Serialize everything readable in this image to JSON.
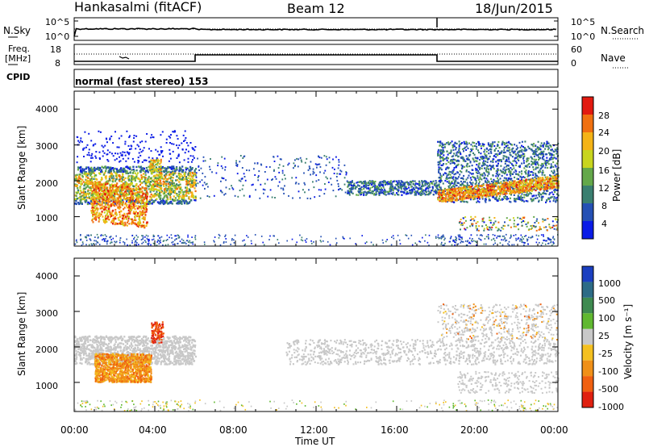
{
  "header": {
    "station": "Hankasalmi (fitACF)",
    "beam": "Beam 12",
    "date": "18/Jun/2015"
  },
  "noise_panel": {
    "left_label": "N.Sky",
    "right_label": "N.Search",
    "ticks": [
      "10^5",
      "10^0"
    ]
  },
  "freq_panel": {
    "left_label_line1": "Freq.",
    "left_label_line2": "[MHz]",
    "left_ticks": [
      "18",
      "8"
    ],
    "right_label": "Nave",
    "right_ticks": [
      "60",
      "0"
    ]
  },
  "cpid": {
    "label": "CPID",
    "program": "normal (fast stereo) 153"
  },
  "power_panel": {
    "ylabel": "Slant Range [km]",
    "yticks": [
      "4000",
      "3000",
      "2000",
      "1000"
    ],
    "colorbar_label": "Power [dB]",
    "colorbar_ticks": [
      "28",
      "24",
      "20",
      "16",
      "12",
      "8",
      "4"
    ],
    "colors": [
      "#0a1be6",
      "#2550b4",
      "#3a7f70",
      "#64a84a",
      "#c8d51e",
      "#f4b316",
      "#f07010",
      "#e21a10"
    ]
  },
  "velocity_panel": {
    "ylabel": "Slant Range [km]",
    "yticks": [
      "4000",
      "3000",
      "2000",
      "1000"
    ],
    "colorbar_label": "Velocity [m s⁻¹]",
    "colorbar_ticks": [
      "1000",
      "500",
      "100",
      "25",
      "-25",
      "-100",
      "-500",
      "-1000"
    ],
    "colors": [
      "#1b3fc0",
      "#2d6b86",
      "#3e8a50",
      "#60b830",
      "#c8c8c8",
      "#f4c020",
      "#f09018",
      "#f06010",
      "#e02010"
    ]
  },
  "xaxis": {
    "label": "Time UT",
    "ticks": [
      "00:00",
      "04:00",
      "08:00",
      "12:00",
      "16:00",
      "20:00",
      "00:00"
    ]
  },
  "chart_data": [
    {
      "type": "heatmap",
      "title": "Beam 12",
      "xlabel": "Time UT",
      "ylabel": "Slant Range [km]",
      "xlim": [
        "00:00",
        "24:00"
      ],
      "ylim": [
        180,
        4500
      ],
      "zlabel": "Power [dB]",
      "zticks": [
        4,
        8,
        12,
        16,
        20,
        24,
        28
      ],
      "regions": [
        {
          "t_start": 0.0,
          "t_end": 6.0,
          "range_min": 1200,
          "range_max": 2500,
          "power_db": 18
        },
        {
          "t_start": 0.8,
          "t_end": 3.5,
          "range_min": 900,
          "range_max": 2000,
          "power_db": 26
        },
        {
          "t_start": 3.7,
          "t_end": 4.3,
          "range_min": 2250,
          "range_max": 2600,
          "power_db": 20
        },
        {
          "t_start": 13.5,
          "t_end": 18.0,
          "range_min": 1600,
          "range_max": 2000,
          "power_db": 12
        },
        {
          "t_start": 18.0,
          "t_end": 24.0,
          "range_min": 1400,
          "range_max": 3100,
          "power_db": 10
        },
        {
          "t_start": 18.0,
          "t_end": 24.0,
          "range_min": 1300,
          "range_max": 1900,
          "power_db": 24
        }
      ]
    },
    {
      "type": "heatmap",
      "title": "",
      "xlabel": "Time UT",
      "ylabel": "Slant Range [km]",
      "xlim": [
        "00:00",
        "24:00"
      ],
      "ylim": [
        180,
        4500
      ],
      "zlabel": "Velocity [m s⁻¹]",
      "zticks": [
        1000,
        500,
        100,
        25,
        -25,
        -100,
        -500,
        -1000
      ],
      "regions": [
        {
          "t_start": 0.0,
          "t_end": 6.0,
          "range_min": 1500,
          "range_max": 2300,
          "velocity": 0
        },
        {
          "t_start": 1.0,
          "t_end": 3.8,
          "range_min": 1000,
          "range_max": 1800,
          "velocity": -300
        },
        {
          "t_start": 3.8,
          "t_end": 4.4,
          "range_min": 2100,
          "range_max": 2700,
          "velocity": -600
        },
        {
          "t_start": 10.5,
          "t_end": 24.0,
          "range_min": 1500,
          "range_max": 2200,
          "velocity": 0
        },
        {
          "t_start": 19.0,
          "t_end": 24.0,
          "range_min": 700,
          "range_max": 1300,
          "velocity": 0
        }
      ]
    }
  ]
}
